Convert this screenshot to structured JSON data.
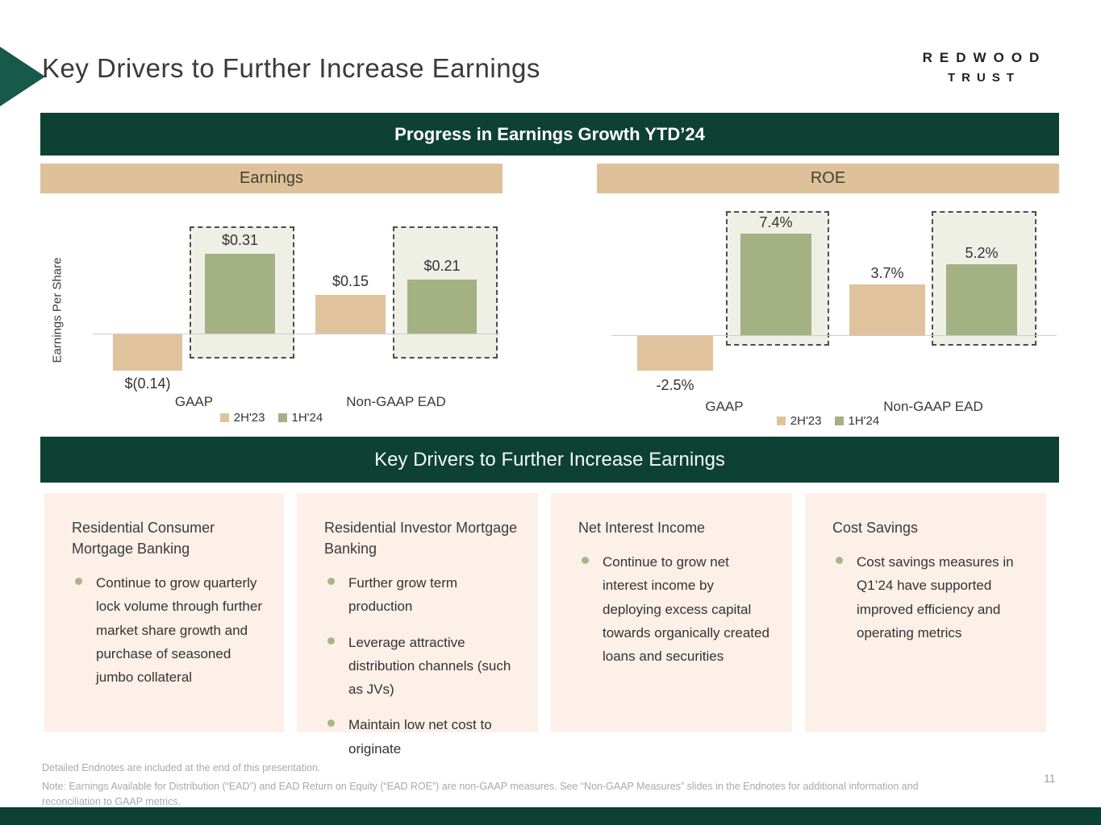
{
  "header": {
    "title": "Key Drivers to Further Increase Earnings",
    "logo_line1": "REDWOOD",
    "logo_line2": "TRUST"
  },
  "banners": {
    "progress": "Progress in Earnings Growth YTD’24",
    "key_drivers": "Key Drivers to Further Increase Earnings"
  },
  "colors": {
    "dark_green": "#0d4134",
    "chevron_green": "#17594a",
    "tan_header": "#dec19a",
    "bar_tan": "#e0c39c",
    "bar_green": "#a4b183",
    "highlight_box_fill": "#eef0e6",
    "panel_peach": "#fcf0e8",
    "bullet_olive": "#a9b588"
  },
  "chart_data": [
    {
      "id": "earnings",
      "type": "bar",
      "title": "Earnings",
      "ylabel": "Earnings Per Share",
      "categories": [
        "GAAP",
        "Non-GAAP EAD"
      ],
      "series": [
        {
          "name": "2H'23",
          "color": "#e0c39c",
          "values": [
            -0.14,
            0.15
          ],
          "labels": [
            "$(0.14)",
            "$0.15"
          ]
        },
        {
          "name": "1H'24",
          "color": "#a4b183",
          "values": [
            0.31,
            0.21
          ],
          "labels": [
            "$0.31",
            "$0.21"
          ]
        }
      ],
      "ylim": [
        -0.2,
        0.45
      ],
      "grid": false,
      "legend_position": "bottom",
      "highlight": "1H'24 bars enclosed in dashed outline boxes"
    },
    {
      "id": "roe",
      "type": "bar",
      "title": "ROE",
      "ylabel": "",
      "categories": [
        "GAAP",
        "Non-GAAP EAD"
      ],
      "series": [
        {
          "name": "2H'23",
          "color": "#e0c39c",
          "values": [
            -2.5,
            3.7
          ],
          "labels": [
            "-2.5%",
            "3.7%"
          ]
        },
        {
          "name": "1H'24",
          "color": "#a4b183",
          "values": [
            7.4,
            5.2
          ],
          "labels": [
            "7.4%",
            "5.2%"
          ]
        }
      ],
      "ylim": [
        -4,
        9
      ],
      "grid": false,
      "legend_position": "bottom",
      "highlight": "1H'24 bars enclosed in dashed outline boxes"
    }
  ],
  "drivers": {
    "columns": [
      {
        "heading": "Residential Consumer Mortgage Banking",
        "bullets": [
          "Continue to grow quarterly lock volume through further market share growth and purchase of seasoned jumbo collateral"
        ]
      },
      {
        "heading": "Residential Investor Mortgage Banking",
        "bullets": [
          "Further grow term production",
          "Leverage attractive distribution channels (such as JVs)",
          "Maintain low net cost to originate"
        ]
      },
      {
        "heading": "Net Interest Income",
        "bullets": [
          "Continue to grow net interest income by deploying excess capital towards organically created loans and securities"
        ]
      },
      {
        "heading": "Cost Savings",
        "bullets": [
          "Cost savings measures in Q1’24 have supported improved efficiency and operating metrics"
        ]
      }
    ]
  },
  "footer": {
    "endnotes": "Detailed Endnotes are included at the end of this presentation.",
    "note": "Note: Earnings Available for Distribution (“EAD”) and EAD Return on Equity (“EAD ROE”) are non-GAAP measures. See “Non-GAAP Measures” slides in the Endnotes for additional information and reconciliation to GAAP metrics.",
    "page_number": "11"
  }
}
